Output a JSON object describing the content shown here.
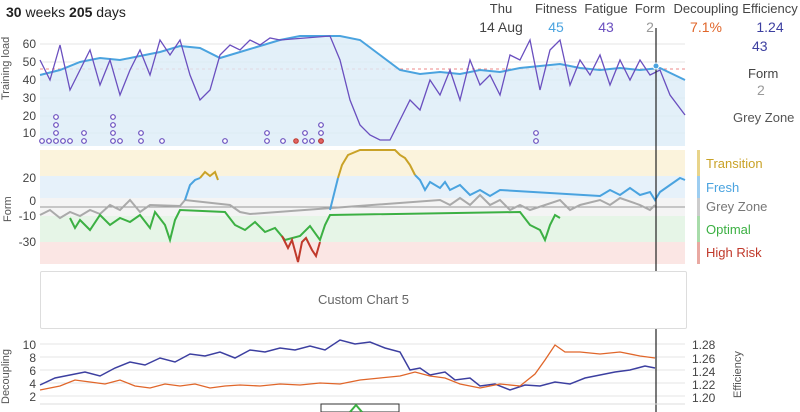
{
  "header": {
    "range_weeks": "30",
    "range_weeks_unit": "weeks",
    "range_days": "205",
    "range_days_unit": "days",
    "day_label": "Thu",
    "date_label": "14 Aug",
    "fitness_label": "Fitness",
    "fitness_value": "45",
    "fatigue_label": "Fatigue",
    "fatigue_value": "43",
    "form_label": "Form",
    "form_value": "2",
    "decoupling_label": "Decoupling",
    "decoupling_value": "7.1%",
    "efficiency_label": "Efficiency",
    "efficiency_value": "1.24"
  },
  "side_panel": {
    "fatigue_value": "43",
    "form_label": "Form",
    "form_value": "2",
    "zone_label": "Grey Zone"
  },
  "training_load_chart": {
    "ylabel": "Training load",
    "yticks": [
      "60",
      "50",
      "40",
      "30",
      "20",
      "10"
    ]
  },
  "form_chart": {
    "ylabel": "Form",
    "yticks": [
      "20",
      "0",
      "-10",
      "-30"
    ],
    "zones": [
      {
        "name": "Transition",
        "color": "#c9a227"
      },
      {
        "name": "Fresh",
        "color": "#4aa3df"
      },
      {
        "name": "Grey Zone",
        "color": "#999999"
      },
      {
        "name": "Optimal",
        "color": "#3cb043"
      },
      {
        "name": "High Risk",
        "color": "#c0392b"
      }
    ]
  },
  "custom_chart": {
    "label": "Custom Chart 5"
  },
  "decoupling_chart": {
    "ylabel_left": "Decoupling",
    "ylabel_right": "Efficiency",
    "yticks_left": [
      "10",
      "8",
      "6",
      "4",
      "2"
    ],
    "yticks_right": [
      "1.28",
      "1.26",
      "1.24",
      "1.22",
      "1.20"
    ]
  },
  "colors": {
    "fitness": "#4aa3df",
    "fatigue": "#6a4fbf",
    "form": "#999999",
    "decoupling": "#e0662a",
    "efficiency": "#3c3fa0"
  }
}
